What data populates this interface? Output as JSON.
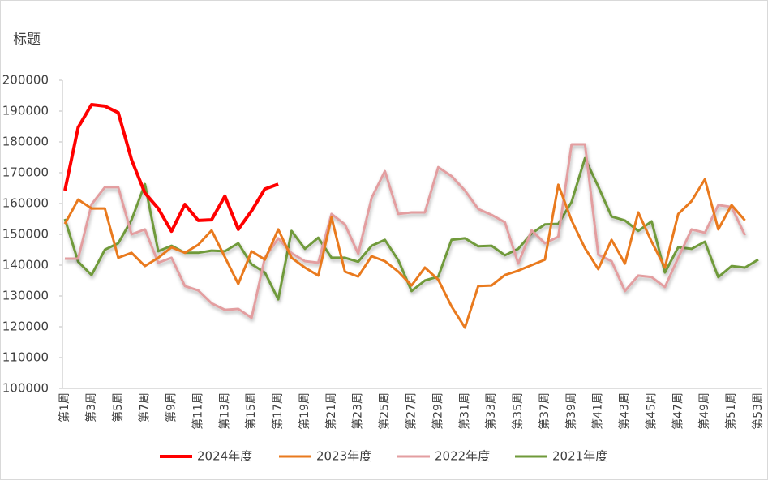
{
  "chart_data": {
    "type": "line",
    "title": "标题",
    "categories": [
      "第1周",
      null,
      "第3周",
      null,
      "第5周",
      null,
      "第7周",
      null,
      "第9周",
      null,
      "第11周",
      null,
      "第13周",
      null,
      "第15周",
      null,
      "第17周",
      null,
      "第19周",
      null,
      "第21周",
      null,
      "第23周",
      null,
      "第25周",
      null,
      "第27周",
      null,
      "第29周",
      null,
      "第31周",
      null,
      "第33周",
      null,
      "第35周",
      null,
      "第37周",
      null,
      "第39周",
      null,
      "第41周",
      null,
      "第43周",
      null,
      "第45周",
      null,
      "第47周",
      null,
      "第49周",
      null,
      "第51周",
      null,
      "第53周"
    ],
    "ylim": [
      100000,
      200000
    ],
    "yticks": [
      100000,
      110000,
      120000,
      130000,
      140000,
      150000,
      160000,
      170000,
      180000,
      190000,
      200000
    ],
    "grid": false,
    "legend": "bottom",
    "series": [
      {
        "name": "2024年度",
        "color": "#ff0000",
        "width": 4,
        "values": [
          164200,
          184700,
          192100,
          191600,
          189500,
          174200,
          163400,
          158400,
          151000,
          159700,
          154500,
          154700,
          162400,
          151600,
          157600,
          164700,
          166300,
          null,
          null,
          null,
          null,
          null,
          null,
          null,
          null,
          null,
          null,
          null,
          null,
          null,
          null,
          null,
          null,
          null,
          null,
          null,
          null,
          null,
          null,
          null,
          null,
          null,
          null,
          null,
          null,
          null,
          null,
          null,
          null,
          null,
          null,
          null,
          null
        ]
      },
      {
        "name": "2023年度",
        "color": "#e97a1e",
        "width": 3,
        "values": [
          153400,
          161300,
          158400,
          158400,
          142400,
          144000,
          139700,
          142400,
          145800,
          144000,
          146600,
          151300,
          142600,
          133900,
          144500,
          141800,
          151600,
          142400,
          139200,
          136600,
          155500,
          137900,
          136300,
          142900,
          141300,
          137900,
          133400,
          139200,
          135300,
          126600,
          119700,
          133200,
          133400,
          136800,
          138200,
          140000,
          141800,
          166100,
          154500,
          145500,
          138700,
          148200,
          140500,
          157100,
          147600,
          139200,
          156600,
          160800,
          167900,
          151600,
          159500,
          154500,
          null
        ]
      },
      {
        "name": "2022年度",
        "color": "#e39ea0",
        "width": 3,
        "values": [
          142100,
          142100,
          159700,
          165300,
          165300,
          150000,
          151600,
          140800,
          142400,
          133200,
          131800,
          127600,
          125500,
          125800,
          122900,
          142400,
          148700,
          143900,
          141300,
          140800,
          156600,
          153200,
          143700,
          161800,
          170500,
          156600,
          157100,
          157100,
          171800,
          168900,
          164200,
          158200,
          156300,
          153900,
          140500,
          151300,
          147100,
          149200,
          179200,
          179200,
          143400,
          141300,
          131600,
          136600,
          136100,
          132900,
          142400,
          151600,
          150500,
          159500,
          158900,
          149700,
          null
        ]
      },
      {
        "name": "2021年度",
        "color": "#6f9a3a",
        "width": 3,
        "values": [
          155000,
          141100,
          136800,
          145000,
          147100,
          154700,
          166300,
          144500,
          146300,
          144000,
          144000,
          144700,
          144500,
          147100,
          140300,
          137600,
          128900,
          151100,
          145300,
          148900,
          142400,
          142400,
          141100,
          146300,
          148200,
          141600,
          131600,
          135000,
          136300,
          148200,
          148700,
          146100,
          146300,
          143200,
          145300,
          150300,
          153200,
          153400,
          160500,
          174700,
          165500,
          155800,
          154500,
          151100,
          154200,
          137600,
          145800,
          145300,
          147600,
          136100,
          139700,
          139200,
          141800
        ]
      }
    ]
  }
}
